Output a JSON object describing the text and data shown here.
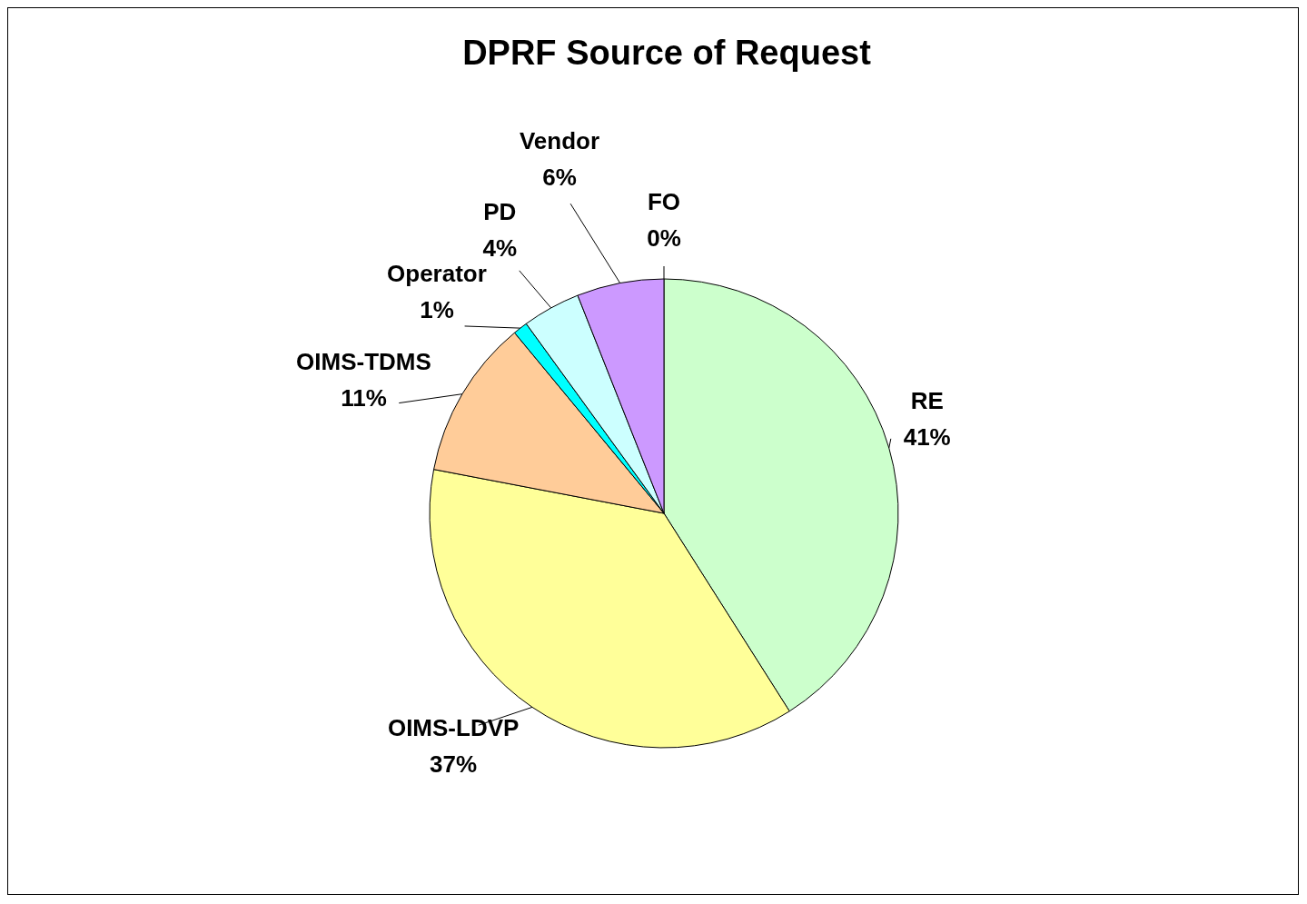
{
  "chart_data": {
    "type": "pie",
    "title": "DPRF Source of Request",
    "categories": [
      "FO",
      "RE",
      "OIMS-LDVP",
      "OIMS-TDMS",
      "Operator",
      "PD",
      "Vendor"
    ],
    "values": [
      0,
      41,
      37,
      11,
      1,
      4,
      6
    ],
    "value_labels": [
      "0%",
      "41%",
      "37%",
      "11%",
      "1%",
      "4%",
      "6%"
    ],
    "colors": [
      "#ff9900",
      "#ccffcc",
      "#ffff99",
      "#ffcc99",
      "#00ffff",
      "#ccffff",
      "#cc99ff"
    ],
    "legend": false
  }
}
